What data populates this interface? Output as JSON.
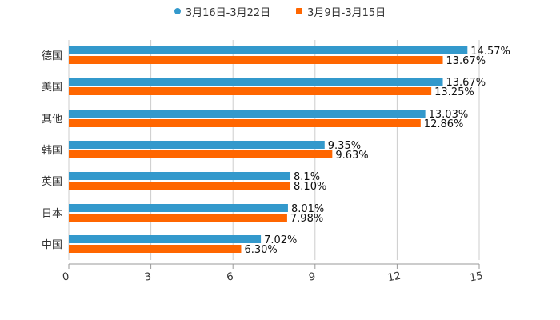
{
  "chart_data": {
    "type": "bar",
    "orientation": "horizontal",
    "title": "",
    "xlabel": "",
    "ylabel": "",
    "xlim": [
      0,
      15
    ],
    "x_ticks": [
      "0",
      "3",
      "6",
      "9",
      "12",
      "15"
    ],
    "grid": true,
    "legend_position": "top",
    "categories": [
      "德国",
      "美国",
      "其他",
      "韩国",
      "英国",
      "日本",
      "中国"
    ],
    "series": [
      {
        "name": "3月16日-3月22日",
        "color": "#3399cc",
        "values": [
          14.57,
          13.67,
          13.03,
          9.35,
          8.1,
          8.01,
          7.02
        ],
        "labels": [
          "14.57%",
          "13.67%",
          "13.03%",
          "9.35%",
          "8.1%",
          "8.01%",
          "7.02%"
        ]
      },
      {
        "name": "3月9日-3月15日",
        "color": "#ff6600",
        "values": [
          13.67,
          13.25,
          12.86,
          9.63,
          8.1,
          7.98,
          6.3
        ],
        "labels": [
          "13.67%",
          "13.25%",
          "12.86%",
          "9.63%",
          "8.10%",
          "7.98%",
          "6.30%"
        ]
      }
    ]
  },
  "legend": [
    {
      "label": "3月16日-3月22日",
      "color": "#3399cc",
      "icon": "circle"
    },
    {
      "label": "3月9日-3月15日",
      "color": "#ff6600",
      "icon": "square"
    }
  ]
}
